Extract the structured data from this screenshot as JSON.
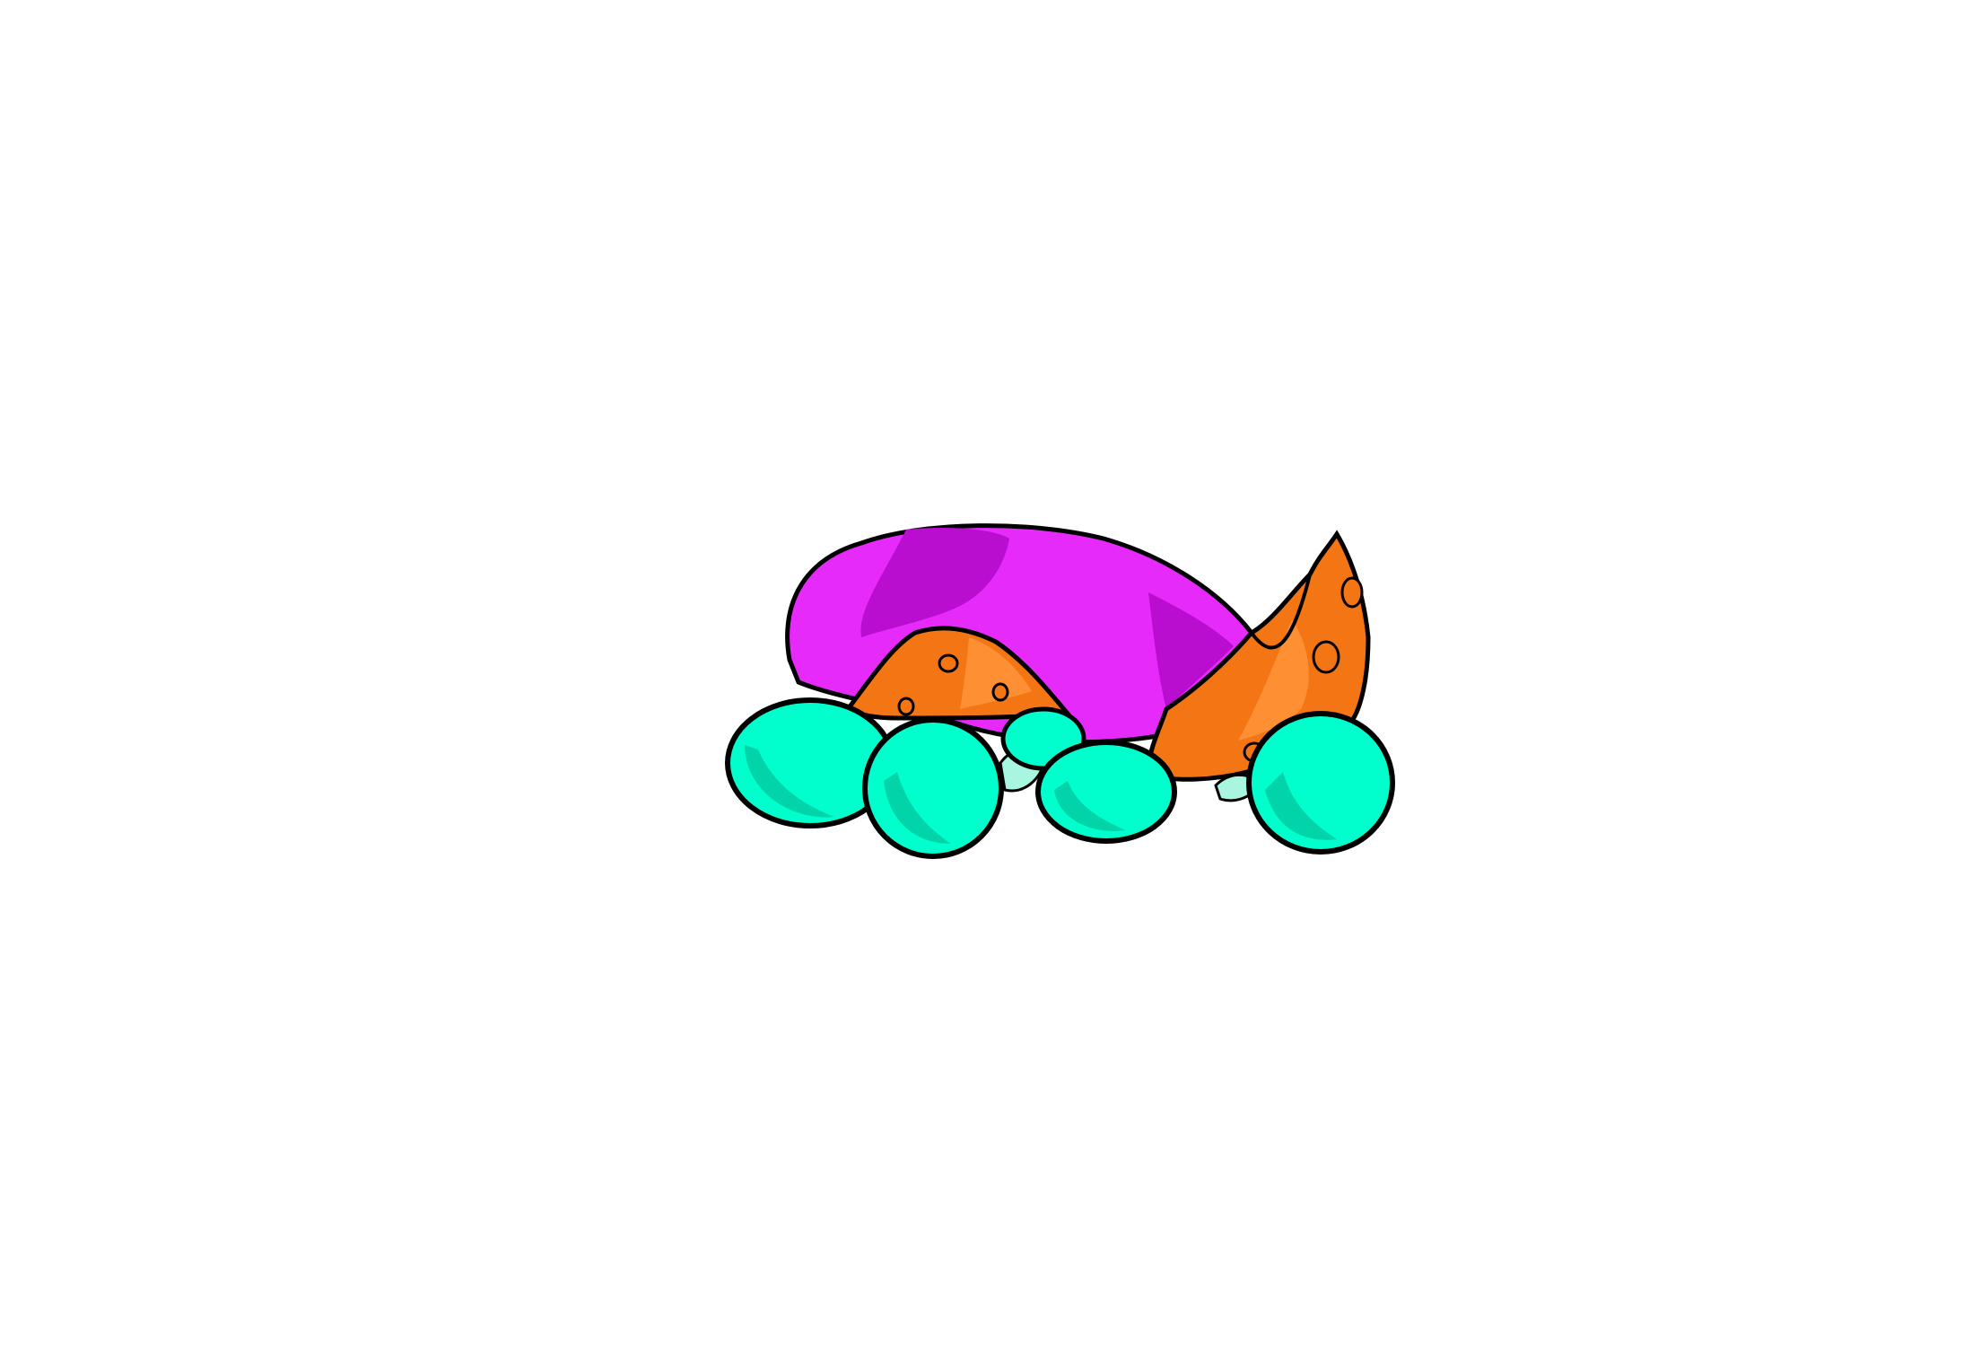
{
  "illustration": {
    "colors": {
      "background": "#ffffff",
      "outline": "#000000",
      "body_main": "#e62afa",
      "body_shade": "#b90dcf",
      "wing": "#f47514",
      "wing_shade": "#ff8f33",
      "egg": "#00ffcc",
      "egg_shade": "#00d4a8",
      "leaf": "#a8f5e0"
    },
    "icons": [
      "magenta-body",
      "orange-fin",
      "orange-tail",
      "teal-egg",
      "pale-leaf"
    ]
  }
}
